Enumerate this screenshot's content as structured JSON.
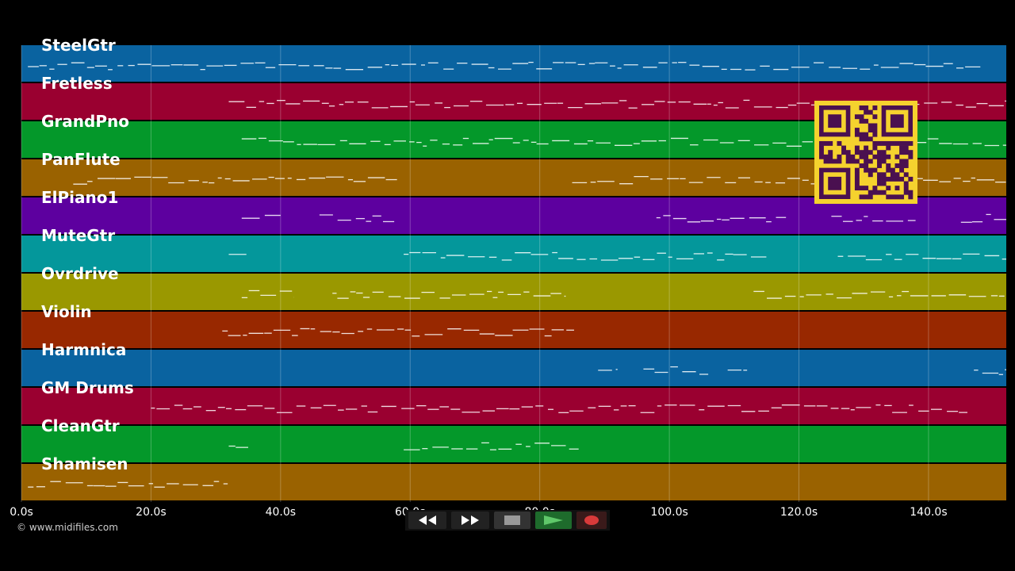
{
  "tracks": [
    {
      "name": "SteelGtr",
      "color": "#0a63a0"
    },
    {
      "name": "Fretless",
      "color": "#9a0030"
    },
    {
      "name": "GrandPno",
      "color": "#04982a"
    },
    {
      "name": "PanFlute",
      "color": "#9a6200"
    },
    {
      "name": "ElPiano1",
      "color": "#5d009f"
    },
    {
      "name": "MuteGtr",
      "color": "#04979b"
    },
    {
      "name": "Ovrdrive",
      "color": "#9a9800"
    },
    {
      "name": "Violin",
      "color": "#982800"
    },
    {
      "name": "Harmnica",
      "color": "#0a63a0"
    },
    {
      "name": "GM Drums",
      "color": "#9a0030"
    },
    {
      "name": "CleanGtr",
      "color": "#04982a"
    },
    {
      "name": "Shamisen",
      "color": "#9a6200"
    }
  ],
  "axis": {
    "ticks": [
      "0.0s",
      "20.0s",
      "40.0s",
      "60.0s",
      "80.0s",
      "100.0s",
      "120.0s",
      "140.0s"
    ],
    "range_seconds": [
      0,
      152
    ]
  },
  "copyright": "© www.midifiles.com",
  "transport": {
    "rewind_icon": "rewind-icon",
    "fast_forward_icon": "fast-forward-icon",
    "stop_icon": "stop-icon",
    "play_icon": "play-icon",
    "record_icon": "record-icon"
  },
  "note_activity": [
    {
      "track": "SteelGtr",
      "spans": [
        [
          1,
          148
        ]
      ]
    },
    {
      "track": "Fretless",
      "spans": [
        [
          32,
          152
        ]
      ]
    },
    {
      "track": "GrandPno",
      "spans": [
        [
          34,
          152
        ]
      ]
    },
    {
      "track": "PanFlute",
      "spans": [
        [
          8,
          58
        ],
        [
          85,
          152
        ]
      ]
    },
    {
      "track": "ElPiano1",
      "spans": [
        [
          34,
          40
        ],
        [
          46,
          58
        ],
        [
          98,
          118
        ],
        [
          125,
          138
        ],
        [
          145,
          152
        ]
      ]
    },
    {
      "track": "MuteGtr",
      "spans": [
        [
          32,
          35
        ],
        [
          59,
          115
        ],
        [
          126,
          152
        ]
      ]
    },
    {
      "track": "Ovrdrive",
      "spans": [
        [
          34,
          42
        ],
        [
          48,
          84
        ],
        [
          113,
          152
        ]
      ]
    },
    {
      "track": "Violin",
      "spans": [
        [
          31,
          86
        ]
      ]
    },
    {
      "track": "Harmnica",
      "spans": [
        [
          89,
          92
        ],
        [
          96,
          106
        ],
        [
          109,
          112
        ],
        [
          147,
          152
        ]
      ]
    },
    {
      "track": "GM Drums",
      "spans": [
        [
          20,
          146
        ]
      ]
    },
    {
      "track": "CleanGtr",
      "spans": [
        [
          32,
          35
        ],
        [
          59,
          86
        ]
      ]
    },
    {
      "track": "Shamisen",
      "spans": [
        [
          1,
          32
        ]
      ]
    }
  ]
}
